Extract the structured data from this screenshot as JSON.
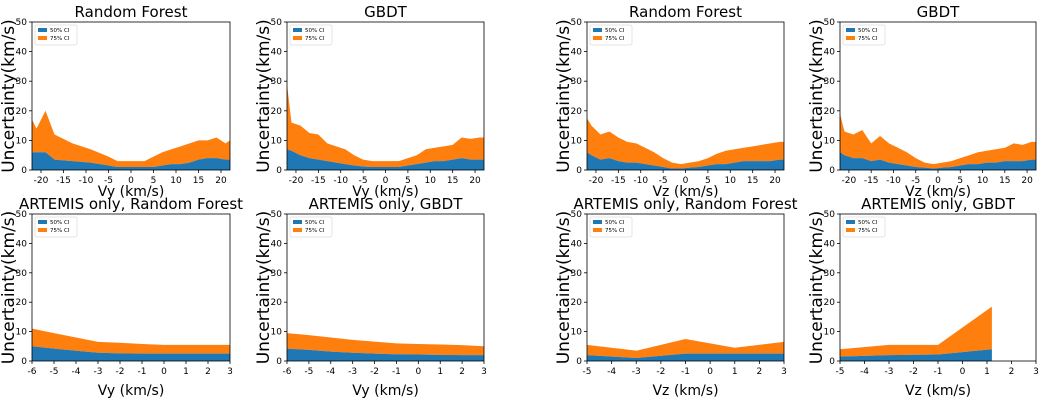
{
  "figure": {
    "background": "#ffffff"
  },
  "colors": {
    "ci50": "#1f77b4",
    "ci75": "#ff7f0e",
    "axis": "#000000"
  },
  "legend": [
    "50% CI",
    "75% CI"
  ],
  "chart_data": [
    {
      "type": "area",
      "title": "Random Forest",
      "xlabel": "Vy (km/s)",
      "ylabel": "Uncertainty(km/s)",
      "xlim": [
        -22,
        22
      ],
      "ylim": [
        0,
        50
      ],
      "xticks": [
        -20,
        -15,
        -10,
        -5,
        0,
        5,
        10,
        15,
        20
      ],
      "yticks": [
        0,
        10,
        20,
        30,
        40,
        50
      ],
      "x": [
        -22,
        -21,
        -19,
        -17,
        -13,
        -9,
        -5,
        -3,
        0,
        3,
        5,
        7,
        9,
        11,
        13,
        15,
        17,
        19,
        21,
        22
      ],
      "series": [
        {
          "name": "50% CI",
          "values": [
            6,
            6,
            6,
            3.5,
            3,
            2.5,
            1.5,
            1,
            1,
            1,
            1,
            1.5,
            2,
            2,
            2.5,
            3.5,
            4,
            4,
            3.5,
            3.5
          ]
        },
        {
          "name": "75% CI",
          "values": [
            17,
            14,
            20,
            12,
            9,
            7,
            4.5,
            3,
            3,
            3,
            4.5,
            6,
            7,
            8,
            9,
            10,
            10,
            11,
            9,
            10
          ]
        }
      ]
    },
    {
      "type": "area",
      "title": "GBDT",
      "xlabel": "Vy (km/s)",
      "ylabel": "Uncertainty(km/s)",
      "xlim": [
        -22,
        22
      ],
      "ylim": [
        0,
        50
      ],
      "xticks": [
        -20,
        -15,
        -10,
        -5,
        0,
        5,
        10,
        15,
        20
      ],
      "yticks": [
        0,
        10,
        20,
        30,
        40,
        50
      ],
      "x": [
        -22,
        -21,
        -19,
        -17,
        -15,
        -13,
        -11,
        -9,
        -7,
        -5,
        -3,
        0,
        3,
        5,
        7,
        9,
        11,
        13,
        15,
        17,
        19,
        21,
        22
      ],
      "series": [
        {
          "name": "50% CI",
          "values": [
            7,
            6.5,
            5,
            4,
            3.5,
            3,
            2.5,
            2,
            1.5,
            1.2,
            1,
            1,
            1,
            1.5,
            2,
            2.5,
            3,
            3,
            3.5,
            4,
            3.5,
            3.5,
            3.5
          ]
        },
        {
          "name": "75% CI",
          "values": [
            29,
            16,
            15,
            12.5,
            12,
            9,
            8,
            7,
            5,
            3.5,
            3,
            3,
            3,
            4,
            5,
            7,
            7.5,
            8,
            8.5,
            11,
            10.5,
            11,
            11
          ]
        }
      ]
    },
    {
      "type": "area",
      "title": "Random Forest",
      "xlabel": "Vz (km/s)",
      "ylabel": "Uncertainty(km/s)",
      "xlim": [
        -22,
        22
      ],
      "ylim": [
        0,
        50
      ],
      "xticks": [
        -20,
        -15,
        -10,
        -5,
        0,
        5,
        10,
        15,
        20
      ],
      "yticks": [
        0,
        10,
        20,
        30,
        40,
        50
      ],
      "x": [
        -22,
        -21,
        -19,
        -17,
        -15,
        -13,
        -11,
        -9,
        -7,
        -5,
        -3,
        -1,
        1,
        3,
        5,
        7,
        9,
        11,
        13,
        15,
        17,
        19,
        21,
        22
      ],
      "series": [
        {
          "name": "50% CI",
          "values": [
            6,
            5,
            3.5,
            4,
            3,
            2.5,
            2.5,
            2,
            1.5,
            1,
            0.5,
            0.5,
            0.8,
            1,
            1.5,
            2,
            2,
            2.5,
            3,
            3,
            3,
            3,
            3.5,
            3.5
          ]
        },
        {
          "name": "75% CI",
          "values": [
            17.5,
            15,
            12,
            13,
            11,
            9.5,
            9,
            7.5,
            6,
            4,
            2.5,
            2,
            2.5,
            3,
            4,
            5.5,
            6.5,
            7,
            7.5,
            8,
            8.5,
            9,
            9.5,
            9.5
          ]
        }
      ]
    },
    {
      "type": "area",
      "title": "GBDT",
      "xlabel": "Vz (km/s)",
      "ylabel": "Uncertainty(km/s)",
      "xlim": [
        -22,
        22
      ],
      "ylim": [
        0,
        50
      ],
      "xticks": [
        -20,
        -15,
        -10,
        -5,
        0,
        5,
        10,
        15,
        20
      ],
      "yticks": [
        0,
        10,
        20,
        30,
        40,
        50
      ],
      "x": [
        -22,
        -21,
        -19,
        -17,
        -15,
        -13,
        -11,
        -9,
        -7,
        -5,
        -3,
        -1,
        1,
        3,
        5,
        7,
        9,
        11,
        13,
        15,
        17,
        19,
        21,
        22
      ],
      "series": [
        {
          "name": "50% CI",
          "values": [
            6,
            5,
            4,
            4,
            3,
            3.5,
            2.5,
            2,
            1.5,
            1,
            0.8,
            0.5,
            0.8,
            1,
            1.5,
            2,
            2,
            2.5,
            2.5,
            3,
            3,
            3,
            3.5,
            3.5
          ]
        },
        {
          "name": "75% CI",
          "values": [
            19,
            13,
            12,
            13.5,
            9,
            11.5,
            9,
            7.5,
            6,
            4,
            2.5,
            2,
            2.5,
            3,
            4,
            5,
            6,
            6.5,
            7,
            7.5,
            9,
            8.5,
            9.5,
            9.5
          ]
        }
      ]
    },
    {
      "type": "area",
      "title": "ARTEMIS only, Random Forest",
      "xlabel": "Vy (km/s)",
      "ylabel": "Uncertainty(km/s)",
      "xlim": [
        -6,
        3
      ],
      "ylim": [
        0,
        50
      ],
      "xticks": [
        -6,
        -5,
        -4,
        -3,
        -2,
        -1,
        0,
        1,
        2,
        3
      ],
      "yticks": [
        0,
        10,
        20,
        30,
        40,
        50
      ],
      "x": [
        -6,
        -5,
        -4,
        -3,
        -2,
        -1,
        0,
        1,
        2,
        3
      ],
      "series": [
        {
          "name": "50% CI",
          "values": [
            5,
            4.2,
            3.5,
            2.8,
            2.6,
            2.5,
            2.5,
            2.5,
            2.5,
            2.5
          ]
        },
        {
          "name": "75% CI",
          "values": [
            11,
            9.5,
            8,
            6.5,
            6.2,
            5.8,
            5.5,
            5.5,
            5.5,
            5.5
          ]
        }
      ]
    },
    {
      "type": "area",
      "title": "ARTEMIS only, GBDT",
      "xlabel": "Vy (km/s)",
      "ylabel": "Uncertainty(km/s)",
      "xlim": [
        -6,
        3
      ],
      "ylim": [
        0,
        50
      ],
      "xticks": [
        -6,
        -5,
        -4,
        -3,
        -2,
        -1,
        0,
        1,
        2,
        3
      ],
      "yticks": [
        0,
        10,
        20,
        30,
        40,
        50
      ],
      "x": [
        -6,
        -5,
        -4,
        -3,
        -2,
        -1,
        0,
        1,
        2,
        3
      ],
      "series": [
        {
          "name": "50% CI",
          "values": [
            4.2,
            3.8,
            3.2,
            2.8,
            2.5,
            2.3,
            2.2,
            2.1,
            2,
            2
          ]
        },
        {
          "name": "75% CI",
          "values": [
            9.5,
            8.8,
            8,
            7.2,
            6.6,
            6,
            5.8,
            5.6,
            5.4,
            5
          ]
        }
      ]
    },
    {
      "type": "area",
      "title": "ARTEMIS only, Random Forest",
      "xlabel": "Vz (km/s)",
      "ylabel": "Uncertainty(km/s)",
      "xlim": [
        -5,
        3
      ],
      "ylim": [
        0,
        50
      ],
      "xticks": [
        -5,
        -4,
        -3,
        -2,
        -1,
        0,
        1,
        2,
        3
      ],
      "yticks": [
        0,
        10,
        20,
        30,
        40,
        50
      ],
      "x": [
        -5,
        -3,
        -1,
        1,
        3
      ],
      "series": [
        {
          "name": "50% CI",
          "values": [
            2,
            1,
            2.5,
            2.5,
            2.5
          ]
        },
        {
          "name": "75% CI",
          "values": [
            5.5,
            3.5,
            7.5,
            4.5,
            6.5
          ]
        }
      ]
    },
    {
      "type": "area",
      "title": "ARTEMIS only, GBDT",
      "xlabel": "Vz (km/s)",
      "ylabel": "Uncertainty(km/s)",
      "xlim": [
        -5,
        3
      ],
      "ylim": [
        0,
        50
      ],
      "xticks": [
        -5,
        -4,
        -3,
        -2,
        -1,
        0,
        1,
        2,
        3
      ],
      "yticks": [
        0,
        10,
        20,
        30,
        40,
        50
      ],
      "x": [
        -5,
        -3,
        -1,
        1.2
      ],
      "series": [
        {
          "name": "50% CI",
          "values": [
            1.5,
            2,
            2.2,
            4
          ]
        },
        {
          "name": "75% CI",
          "values": [
            4,
            5.5,
            5.5,
            18.5
          ]
        }
      ]
    }
  ]
}
